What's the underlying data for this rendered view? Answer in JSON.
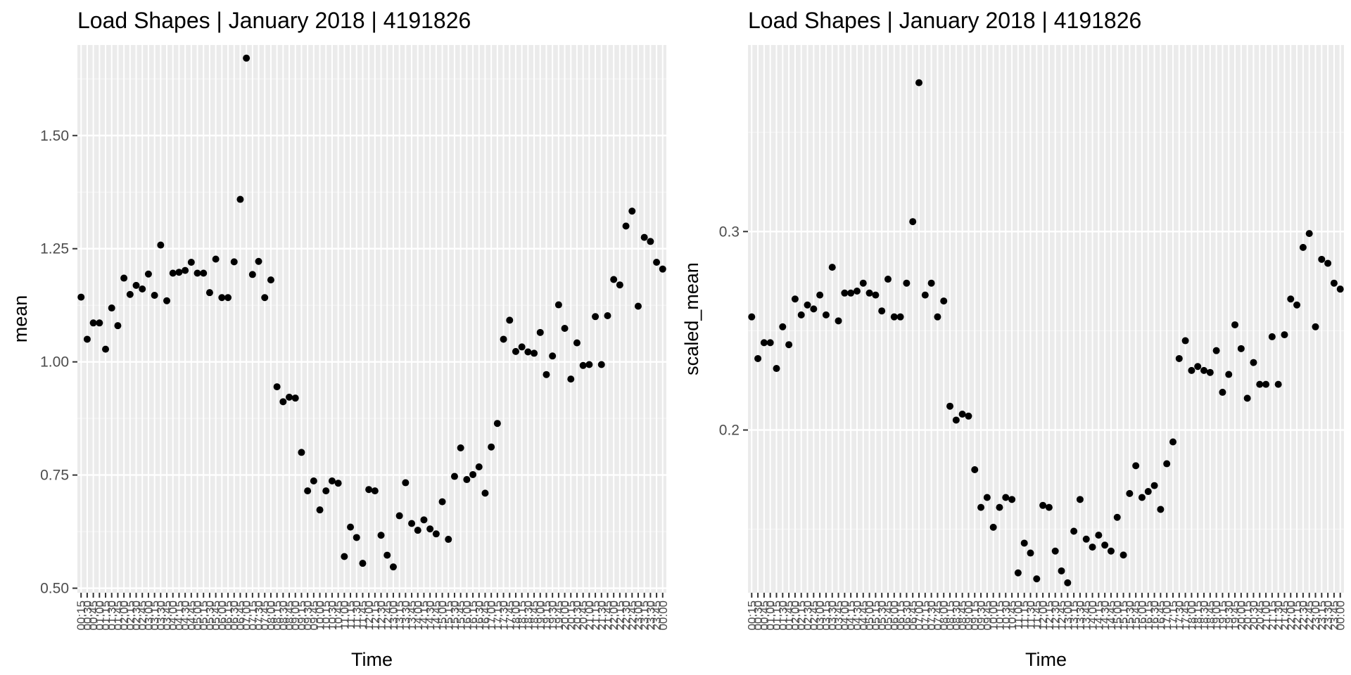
{
  "chart_data": [
    {
      "type": "scatter",
      "title": "Load Shapes | January 2018 |  4191826",
      "xlabel": "Time",
      "ylabel": "mean",
      "ylim": [
        0.49,
        1.7
      ],
      "yticks": [
        0.5,
        0.75,
        1.0,
        1.25,
        1.5
      ],
      "ytick_labels": [
        "0.50",
        "0.75",
        "1.00",
        "1.25",
        "1.50"
      ],
      "grid": true,
      "x": [
        "00:15",
        "00:30",
        "00:45",
        "01:00",
        "01:15",
        "01:30",
        "01:45",
        "02:00",
        "02:15",
        "02:30",
        "02:45",
        "03:00",
        "03:15",
        "03:30",
        "03:45",
        "04:00",
        "04:15",
        "04:30",
        "04:45",
        "05:00",
        "05:15",
        "05:30",
        "05:45",
        "06:00",
        "06:15",
        "06:30",
        "06:45",
        "07:00",
        "07:15",
        "07:30",
        "07:45",
        "08:00",
        "08:15",
        "08:30",
        "08:45",
        "09:00",
        "09:15",
        "09:30",
        "09:45",
        "10:00",
        "10:15",
        "10:30",
        "10:45",
        "11:00",
        "11:15",
        "11:30",
        "11:45",
        "12:00",
        "12:15",
        "12:30",
        "12:45",
        "13:00",
        "13:15",
        "13:30",
        "13:45",
        "14:00",
        "14:15",
        "14:30",
        "14:45",
        "15:00",
        "15:15",
        "15:30",
        "15:45",
        "16:00",
        "16:15",
        "16:30",
        "16:45",
        "17:00",
        "17:15",
        "17:30",
        "17:45",
        "18:00",
        "18:15",
        "18:30",
        "18:45",
        "19:00",
        "19:15",
        "19:30",
        "19:45",
        "20:00",
        "20:15",
        "20:30",
        "20:45",
        "21:00",
        "21:15",
        "21:30",
        "21:45",
        "22:00",
        "22:15",
        "22:30",
        "22:45",
        "23:00",
        "23:15",
        "23:30",
        "23:45",
        "00:00"
      ],
      "y": [
        1.143,
        1.05,
        1.086,
        1.086,
        1.028,
        1.119,
        1.08,
        1.185,
        1.149,
        1.169,
        1.161,
        1.194,
        1.147,
        1.258,
        1.135,
        1.196,
        1.198,
        1.202,
        1.22,
        1.196,
        1.196,
        1.153,
        1.227,
        1.142,
        1.142,
        1.221,
        1.359,
        1.671,
        1.193,
        1.222,
        1.142,
        1.181,
        0.945,
        0.912,
        0.922,
        0.92,
        0.8,
        0.715,
        0.737,
        0.673,
        0.715,
        0.737,
        0.732,
        0.57,
        0.635,
        0.612,
        0.555,
        0.718,
        0.715,
        0.617,
        0.573,
        0.547,
        0.66,
        0.733,
        0.643,
        0.628,
        0.651,
        0.631,
        0.62,
        0.691,
        0.608,
        0.747,
        0.81,
        0.74,
        0.751,
        0.768,
        0.71,
        0.812,
        0.864,
        1.05,
        1.092,
        1.023,
        1.033,
        1.022,
        1.019,
        1.065,
        0.972,
        1.013,
        1.126,
        1.074,
        0.962,
        1.042,
        0.992,
        0.994,
        1.1,
        0.994,
        1.102,
        1.182,
        1.17,
        1.3,
        1.333,
        1.123,
        1.275,
        1.266,
        1.22,
        1.205
      ]
    },
    {
      "type": "scatter",
      "title": "Load Shapes | January 2018 |  4191826",
      "xlabel": "Time",
      "ylabel": "scaled_mean",
      "ylim": [
        0.118,
        0.394
      ],
      "yticks": [
        0.2,
        0.3
      ],
      "ytick_labels": [
        "0.2",
        "0.3"
      ],
      "grid": true,
      "x": [
        "00:15",
        "00:30",
        "00:45",
        "01:00",
        "01:15",
        "01:30",
        "01:45",
        "02:00",
        "02:15",
        "02:30",
        "02:45",
        "03:00",
        "03:15",
        "03:30",
        "03:45",
        "04:00",
        "04:15",
        "04:30",
        "04:45",
        "05:00",
        "05:15",
        "05:30",
        "05:45",
        "06:00",
        "06:15",
        "06:30",
        "06:45",
        "07:00",
        "07:15",
        "07:30",
        "07:45",
        "08:00",
        "08:15",
        "08:30",
        "08:45",
        "09:00",
        "09:15",
        "09:30",
        "09:45",
        "10:00",
        "10:15",
        "10:30",
        "10:45",
        "11:00",
        "11:15",
        "11:30",
        "11:45",
        "12:00",
        "12:15",
        "12:30",
        "12:45",
        "13:00",
        "13:15",
        "13:30",
        "13:45",
        "14:00",
        "14:15",
        "14:30",
        "14:45",
        "15:00",
        "15:15",
        "15:30",
        "15:45",
        "16:00",
        "16:15",
        "16:30",
        "16:45",
        "17:00",
        "17:15",
        "17:30",
        "17:45",
        "18:00",
        "18:15",
        "18:30",
        "18:45",
        "19:00",
        "19:15",
        "19:30",
        "19:45",
        "20:00",
        "20:15",
        "20:30",
        "20:45",
        "21:00",
        "21:15",
        "21:30",
        "21:45",
        "22:00",
        "22:15",
        "22:30",
        "22:45",
        "23:00",
        "23:15",
        "23:30",
        "23:45",
        "00:00"
      ],
      "y": [
        0.257,
        0.236,
        0.244,
        0.244,
        0.231,
        0.252,
        0.243,
        0.266,
        0.258,
        0.263,
        0.261,
        0.268,
        0.258,
        0.282,
        0.255,
        0.269,
        0.269,
        0.27,
        0.274,
        0.269,
        0.268,
        0.26,
        0.276,
        0.257,
        0.257,
        0.274,
        0.305,
        0.375,
        0.268,
        0.274,
        0.257,
        0.265,
        0.212,
        0.205,
        0.208,
        0.207,
        0.18,
        0.161,
        0.166,
        0.151,
        0.161,
        0.166,
        0.165,
        0.128,
        0.143,
        0.138,
        0.125,
        0.162,
        0.161,
        0.139,
        0.129,
        0.123,
        0.149,
        0.165,
        0.145,
        0.141,
        0.147,
        0.142,
        0.139,
        0.156,
        0.137,
        0.168,
        0.182,
        0.166,
        0.169,
        0.172,
        0.16,
        0.183,
        0.194,
        0.236,
        0.245,
        0.23,
        0.232,
        0.23,
        0.229,
        0.24,
        0.219,
        0.228,
        0.253,
        0.241,
        0.216,
        0.234,
        0.223,
        0.223,
        0.247,
        0.223,
        0.248,
        0.266,
        0.263,
        0.292,
        0.299,
        0.252,
        0.286,
        0.284,
        0.274,
        0.271
      ]
    }
  ]
}
